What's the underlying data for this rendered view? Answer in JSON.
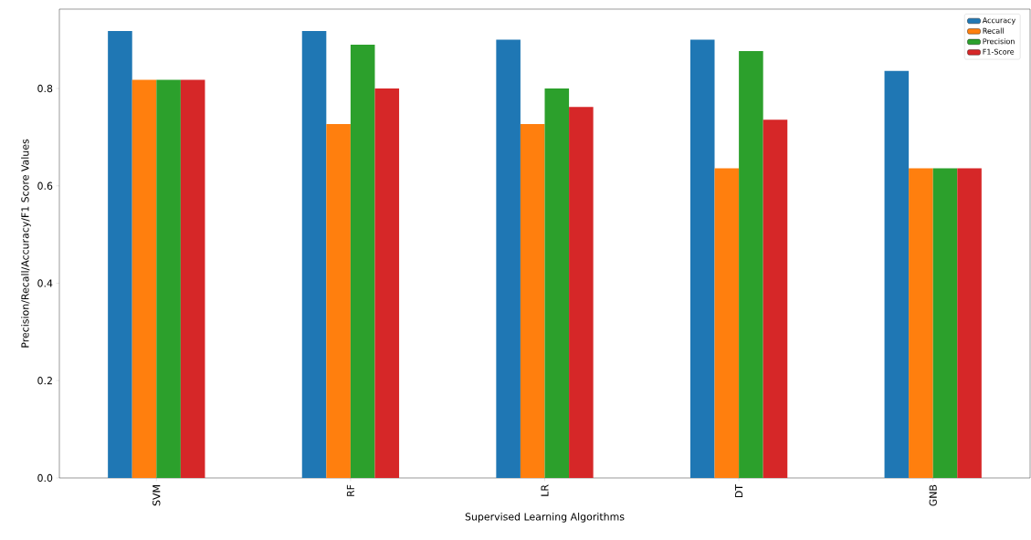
{
  "chart_data": {
    "type": "bar",
    "xlabel": "Supervised Learning Algorithms",
    "ylabel": "Precision/Recall/Accuracy/F1 Score Values",
    "categories": [
      "SVM",
      "RF",
      "LR",
      "DT",
      "GNB"
    ],
    "series": [
      {
        "name": "Accuracy",
        "color": "#1f77b4",
        "values": [
          0.918,
          0.918,
          0.9,
          0.9,
          0.836
        ]
      },
      {
        "name": "Recall",
        "color": "#ff7f0e",
        "values": [
          0.818,
          0.727,
          0.727,
          0.636,
          0.636
        ]
      },
      {
        "name": "Precision",
        "color": "#2ca02c",
        "values": [
          0.818,
          0.89,
          0.8,
          0.877,
          0.636
        ]
      },
      {
        "name": "F1-Score",
        "color": "#d62728",
        "values": [
          0.818,
          0.8,
          0.762,
          0.736,
          0.636
        ]
      }
    ],
    "ylim": [
      0,
      0.963
    ],
    "yticks": [
      {
        "value": 0,
        "label": "0.0"
      },
      {
        "value": 0.2,
        "label": "0.2"
      },
      {
        "value": 0.4,
        "label": "0.4"
      },
      {
        "value": 0.6,
        "label": "0.6"
      },
      {
        "value": 0.8,
        "label": "0.8"
      }
    ],
    "grid": false,
    "legend": "top right"
  }
}
